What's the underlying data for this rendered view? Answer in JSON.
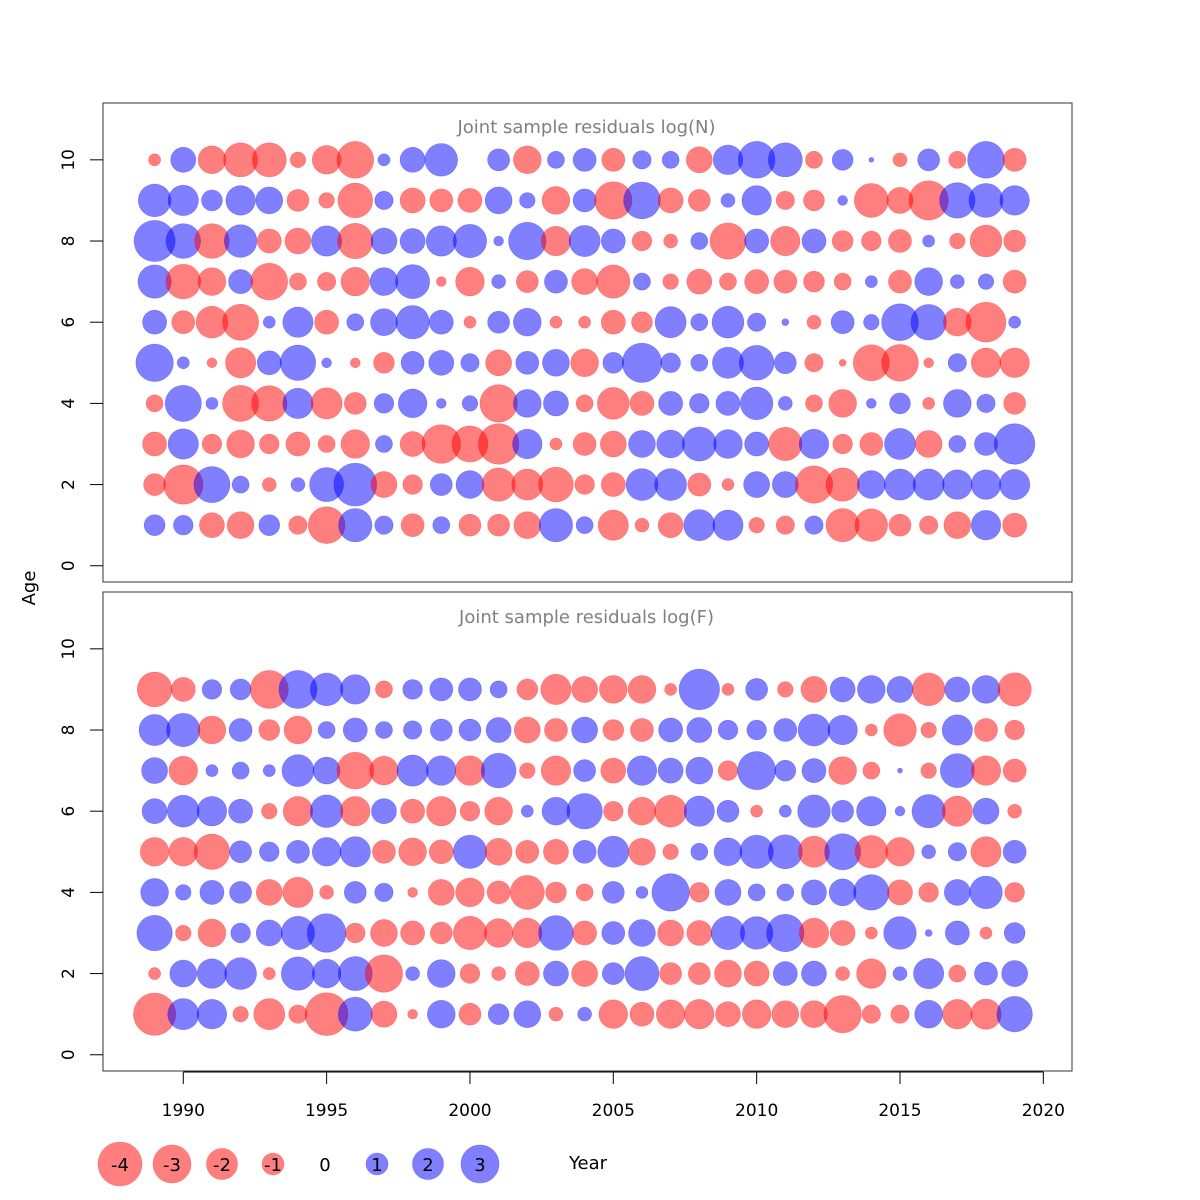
{
  "chart_data": {
    "type": "scatter",
    "style": "bubble residual plot",
    "colors": {
      "positive": "#0000ff",
      "negative": "#ff0000",
      "bubble_alpha": 0.5,
      "frame": "#333333",
      "title": "#808080"
    },
    "xlabel": "Year",
    "ylabel": "Age",
    "xlim": [
      1987.2,
      2021.0
    ],
    "ylim": [
      -0.4,
      11.4
    ],
    "x_ticks": [
      "1990",
      "1995",
      "2000",
      "2005",
      "2010",
      "2015",
      "2020"
    ],
    "y_ticks": [
      "0",
      "2",
      "4",
      "6",
      "8",
      "10"
    ],
    "years": [
      1989,
      1990,
      1991,
      1992,
      1993,
      1994,
      1995,
      1996,
      1997,
      1998,
      1999,
      2000,
      2001,
      2002,
      2003,
      2004,
      2005,
      2006,
      2007,
      2008,
      2009,
      2010,
      2011,
      2012,
      2013,
      2014,
      2015,
      2016,
      2017,
      2018,
      2019
    ],
    "legend": {
      "values": [
        "-4",
        "-3",
        "-2",
        "-1",
        "0",
        "1",
        "2",
        "3"
      ]
    },
    "panels": [
      {
        "title": "Joint sample residuals log(N)",
        "ages": [
          1,
          2,
          3,
          4,
          5,
          6,
          7,
          8,
          9,
          10
        ],
        "residuals": [
          [
            0.9,
            0.8,
            -1.3,
            -1.5,
            0.9,
            -0.7,
            -2.8,
            2.3,
            0.7,
            -1.1,
            0.6,
            -1.0,
            -1.0,
            -1.5,
            2.3,
            0.6,
            -1.9,
            -0.4,
            -1.3,
            2.0,
            1.9,
            -0.5,
            -0.7,
            0.7,
            -2.3,
            -2.2,
            -1.0,
            -0.7,
            -1.5,
            1.8,
            -1.2
          ],
          [
            -1.0,
            -3.2,
            2.7,
            0.6,
            -0.4,
            0.4,
            2.4,
            3.8,
            -1.4,
            -0.8,
            1.0,
            1.6,
            -2.3,
            -2.0,
            -2.5,
            -0.8,
            -1.2,
            2.1,
            2.1,
            -1.1,
            -0.3,
            1.4,
            1.4,
            -2.9,
            -2.3,
            1.6,
            2.0,
            2.0,
            1.8,
            1.8,
            1.9
          ],
          [
            -1.2,
            1.9,
            -0.8,
            -1.6,
            -0.8,
            -1.2,
            -0.6,
            -1.7,
            0.6,
            -1.3,
            -3.1,
            -2.7,
            -3.4,
            1.8,
            -0.3,
            -1.1,
            -1.4,
            1.5,
            1.6,
            2.4,
            1.7,
            1.2,
            -2.3,
            1.8,
            -0.8,
            -1.1,
            2.0,
            -1.5,
            0.6,
            1.1,
            3.4
          ],
          [
            -0.6,
            2.7,
            0.3,
            -2.7,
            -2.6,
            1.9,
            -2.0,
            -1.0,
            0.8,
            1.7,
            0.2,
            0.5,
            -2.9,
            1.6,
            1.3,
            -0.6,
            -2.1,
            -1.2,
            1.2,
            0.8,
            1.2,
            2.2,
            0.4,
            -0.6,
            -1.6,
            0.2,
            0.9,
            -0.3,
            1.6,
            0.7,
            -1.0
          ],
          [
            2.9,
            0.3,
            -0.2,
            -1.9,
            1.2,
            2.6,
            0.2,
            -0.2,
            -0.9,
            1.1,
            1.3,
            0.7,
            -1.4,
            1.1,
            1.5,
            -1.6,
            0.9,
            3.2,
            0.8,
            0.6,
            2.0,
            2.5,
            1.0,
            -0.7,
            -0.1,
            -2.7,
            -2.8,
            -0.2,
            0.7,
            -1.8,
            -1.8
          ],
          [
            1.2,
            -1.1,
            -2.1,
            -2.7,
            0.3,
            1.9,
            -1.2,
            0.6,
            1.5,
            2.3,
            1.2,
            -0.3,
            1.0,
            1.6,
            -0.3,
            -0.3,
            -1.2,
            -0.9,
            2.0,
            0.6,
            2.1,
            0.7,
            0.1,
            -0.4,
            1.1,
            0.5,
            2.8,
            2.6,
            -1.6,
            -3.3,
            0.3
          ],
          [
            2.3,
            -2.5,
            -1.6,
            1.2,
            -2.8,
            -0.6,
            -0.7,
            -1.7,
            1.6,
            2.4,
            -0.2,
            -1.7,
            0.4,
            -1.0,
            1.1,
            -1.4,
            -2.3,
            0.6,
            -0.5,
            -1.3,
            -0.6,
            -1.2,
            -1.1,
            -0.9,
            -0.6,
            0.3,
            -1.1,
            1.6,
            0.4,
            0.5,
            -1.1
          ],
          [
            3.5,
            2.5,
            -2.5,
            2.2,
            -1.2,
            -1.4,
            1.9,
            -2.6,
            1.4,
            1.3,
            1.9,
            2.3,
            0.2,
            2.9,
            -1.8,
            2.0,
            1.2,
            -0.8,
            -0.4,
            0.6,
            -2.7,
            1.2,
            -1.8,
            1.2,
            -0.9,
            -0.8,
            -1.1,
            0.3,
            -0.5,
            -2.1,
            -1.0
          ],
          [
            2.2,
            1.9,
            0.9,
            1.8,
            1.5,
            -1.0,
            -0.5,
            -2.5,
            0.7,
            -1.3,
            -1.1,
            -1.2,
            1.5,
            0.5,
            -1.6,
            1.1,
            -2.9,
            2.8,
            -1.3,
            -1.0,
            0.4,
            1.8,
            -0.7,
            -0.9,
            0.2,
            -2.4,
            -1.4,
            -3.2,
            2.6,
            2.4,
            1.8
          ],
          [
            -0.3,
            1.3,
            -1.6,
            -2.4,
            -2.4,
            -0.5,
            -1.7,
            -2.8,
            0.3,
            1.3,
            2.2,
            0.0,
            1.0,
            -1.6,
            0.6,
            1.1,
            -1.1,
            0.7,
            0.6,
            -1.4,
            1.8,
            2.8,
            2.4,
            -0.6,
            0.9,
            0.05,
            -0.4,
            1.0,
            -0.6,
            2.8,
            -1.1
          ]
        ]
      },
      {
        "title": "Joint sample residuals log(F)",
        "ages": [
          1,
          2,
          3,
          4,
          5,
          6,
          7,
          8,
          9
        ],
        "residuals": [
          [
            -3.7,
            2.0,
            1.8,
            -0.5,
            -2.0,
            -0.7,
            -3.8,
            2.4,
            -1.4,
            -0.2,
            1.6,
            -1.0,
            0.9,
            1.5,
            -0.4,
            0.4,
            -1.7,
            -1.2,
            -1.7,
            -1.8,
            -1.3,
            -1.7,
            -1.5,
            -1.5,
            -2.9,
            -0.7,
            -0.7,
            1.6,
            -1.8,
            -1.9,
            2.6
          ],
          [
            -0.3,
            1.5,
            1.8,
            2.1,
            -0.3,
            2.3,
            1.7,
            2.4,
            -2.9,
            0.4,
            1.6,
            -0.8,
            -0.4,
            -1.2,
            1.3,
            -1.4,
            1.0,
            2.4,
            -1.0,
            -1.0,
            -1.5,
            -1.3,
            1.2,
            1.3,
            -0.4,
            -1.8,
            0.4,
            1.9,
            -0.6,
            1.1,
            1.4
          ],
          [
            2.6,
            -0.5,
            -1.6,
            0.8,
            1.4,
            2.3,
            3.1,
            -0.8,
            -1.5,
            -1.2,
            -1.0,
            -2.3,
            -1.7,
            -1.8,
            2.5,
            -1.2,
            1.1,
            1.5,
            -1.4,
            -1.3,
            2.3,
            2.2,
            2.9,
            -1.8,
            -1.3,
            -0.3,
            2.2,
            0.1,
            1.2,
            -0.3,
            0.9
          ],
          [
            1.6,
            0.5,
            1.2,
            1.0,
            -1.4,
            -1.9,
            -0.4,
            1.0,
            0.7,
            -0.2,
            -1.4,
            -1.7,
            -1.1,
            -2.4,
            -0.9,
            -0.6,
            1.0,
            0.3,
            2.9,
            -0.8,
            1.4,
            0.6,
            0.6,
            1.3,
            1.5,
            2.6,
            -1.3,
            -0.8,
            1.4,
            2.2,
            -0.8
          ],
          [
            -1.7,
            -1.7,
            -2.6,
            1.0,
            0.8,
            1.1,
            1.7,
            1.9,
            -1.1,
            -1.6,
            -1.2,
            2.3,
            -1.5,
            -1.1,
            -1.3,
            1.1,
            2.0,
            -1.5,
            -0.5,
            0.6,
            1.6,
            2.3,
            2.4,
            -2.0,
            2.7,
            -2.2,
            -1.7,
            0.4,
            0.7,
            -1.9,
            1.1
          ],
          [
            1.3,
            2.1,
            1.8,
            1.2,
            -0.5,
            -1.8,
            2.2,
            -1.8,
            1.3,
            -1.2,
            -1.8,
            -0.8,
            -1.6,
            0.3,
            1.6,
            2.6,
            -0.8,
            -1.6,
            -2.1,
            1.9,
            1.0,
            -0.3,
            0.3,
            2.2,
            1.0,
            1.8,
            0.2,
            2.3,
            -1.9,
            1.4,
            -0.4
          ],
          [
            1.4,
            -1.7,
            0.3,
            0.6,
            0.3,
            2.1,
            1.5,
            -2.8,
            -1.7,
            2.0,
            1.8,
            -1.8,
            2.5,
            -0.5,
            -1.8,
            1.0,
            -1.3,
            1.8,
            1.3,
            1.5,
            -0.8,
            3.0,
            0.9,
            1.2,
            -1.6,
            -0.6,
            0.05,
            -0.5,
            2.4,
            -1.8,
            -1.1
          ],
          [
            2.0,
            2.3,
            -1.6,
            1.1,
            -0.9,
            -1.6,
            0.6,
            1.2,
            0.6,
            0.7,
            1.0,
            1.0,
            1.3,
            -1.4,
            -1.1,
            1.4,
            -0.9,
            -1.1,
            1.2,
            1.3,
            0.8,
            0.8,
            1.1,
            2.1,
            1.8,
            -0.3,
            -2.2,
            -0.5,
            1.9,
            -1.1,
            -0.8
          ],
          [
            -2.5,
            -1.2,
            0.8,
            0.9,
            -3.0,
            3.0,
            2.2,
            1.8,
            -0.6,
            0.8,
            1.1,
            1.1,
            0.6,
            -0.9,
            -1.9,
            -1.4,
            -1.6,
            -1.6,
            -0.3,
            3.4,
            -0.3,
            1.0,
            -0.5,
            -1.4,
            1.3,
            1.6,
            1.4,
            -2.2,
            1.3,
            1.6,
            -2.3
          ]
        ]
      }
    ]
  }
}
